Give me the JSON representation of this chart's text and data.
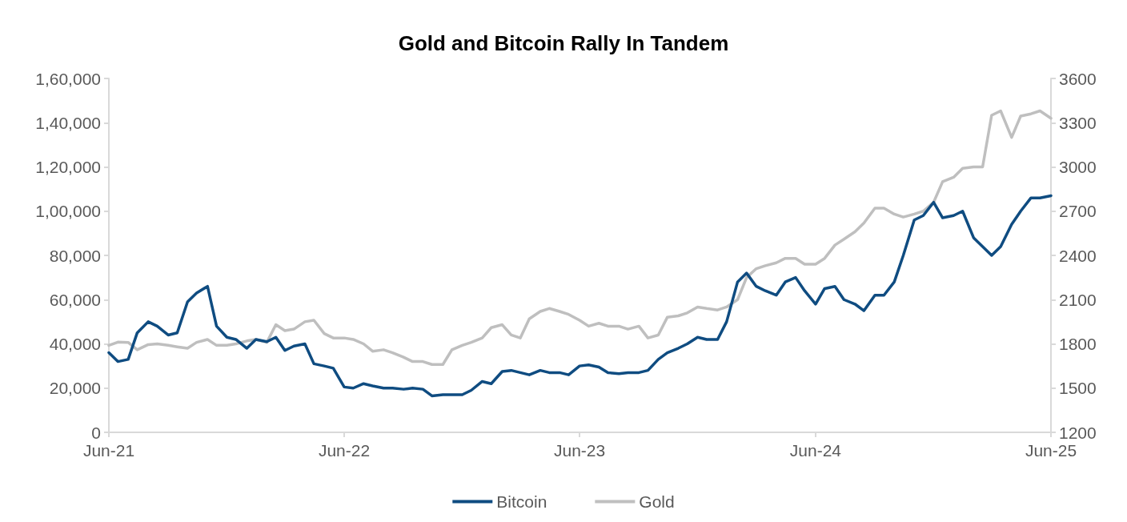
{
  "chart_data": {
    "type": "line",
    "title": "Gold and Bitcoin Rally In Tandem",
    "x": [
      "2021-06-01",
      "2021-06-15",
      "2021-07-01",
      "2021-07-15",
      "2021-08-01",
      "2021-08-15",
      "2021-09-01",
      "2021-09-15",
      "2021-10-01",
      "2021-10-15",
      "2021-11-01",
      "2021-11-15",
      "2021-12-01",
      "2021-12-15",
      "2022-01-01",
      "2022-01-15",
      "2022-02-01",
      "2022-02-15",
      "2022-03-01",
      "2022-03-15",
      "2022-04-01",
      "2022-04-15",
      "2022-05-01",
      "2022-05-15",
      "2022-06-01",
      "2022-06-15",
      "2022-07-01",
      "2022-07-15",
      "2022-08-01",
      "2022-08-15",
      "2022-09-01",
      "2022-09-15",
      "2022-10-01",
      "2022-10-15",
      "2022-11-01",
      "2022-11-15",
      "2022-12-01",
      "2022-12-15",
      "2023-01-01",
      "2023-01-15",
      "2023-02-01",
      "2023-02-15",
      "2023-03-01",
      "2023-03-15",
      "2023-04-01",
      "2023-04-15",
      "2023-05-01",
      "2023-05-15",
      "2023-06-01",
      "2023-06-15",
      "2023-07-01",
      "2023-07-15",
      "2023-08-01",
      "2023-08-15",
      "2023-09-01",
      "2023-09-15",
      "2023-10-01",
      "2023-10-15",
      "2023-11-01",
      "2023-11-15",
      "2023-12-01",
      "2023-12-15",
      "2024-01-01",
      "2024-01-15",
      "2024-02-01",
      "2024-02-15",
      "2024-03-01",
      "2024-03-15",
      "2024-04-01",
      "2024-04-15",
      "2024-05-01",
      "2024-05-15",
      "2024-06-01",
      "2024-06-15",
      "2024-07-01",
      "2024-07-15",
      "2024-08-01",
      "2024-08-15",
      "2024-09-01",
      "2024-09-15",
      "2024-10-01",
      "2024-10-15",
      "2024-11-01",
      "2024-11-15",
      "2024-12-01",
      "2024-12-15",
      "2025-01-01",
      "2025-01-15",
      "2025-02-01",
      "2025-02-15",
      "2025-03-01",
      "2025-03-15",
      "2025-04-01",
      "2025-04-15",
      "2025-05-01",
      "2025-05-15",
      "2025-06-01"
    ],
    "series": [
      {
        "name": "Bitcoin",
        "color": "#0f4c81",
        "values": [
          36000,
          32000,
          33000,
          45000,
          50000,
          48000,
          44000,
          45000,
          59000,
          63000,
          66000,
          48000,
          43000,
          42000,
          38000,
          42000,
          41000,
          43000,
          37000,
          39000,
          40000,
          31000,
          30000,
          29000,
          20500,
          20000,
          22000,
          21000,
          20000,
          20000,
          19500,
          20000,
          19500,
          16500,
          17000,
          17000,
          17000,
          19000,
          23000,
          22000,
          27500,
          28000,
          27000,
          26000,
          28000,
          27000,
          27000,
          26000,
          30000,
          30500,
          29500,
          27000,
          26500,
          27000,
          27000,
          28000,
          33000,
          36000,
          38000,
          40000,
          43000,
          42000,
          42000,
          50000,
          68000,
          72000,
          66000,
          64000,
          62000,
          68000,
          70000,
          64000,
          58000,
          65000,
          66000,
          60000,
          58000,
          55000,
          62000,
          62000,
          68000,
          80000,
          96000,
          98000,
          104000,
          97000,
          98000,
          100000,
          88000,
          84000,
          80000,
          84000,
          94000,
          100000,
          106000,
          106000,
          107000
        ]
      },
      {
        "name": "Gold",
        "color": "#bfbfbf",
        "axis": "y2",
        "values": [
          1790,
          1812,
          1810,
          1760,
          1795,
          1800,
          1790,
          1780,
          1770,
          1810,
          1830,
          1790,
          1790,
          1800,
          1820,
          1830,
          1810,
          1930,
          1890,
          1900,
          1950,
          1960,
          1870,
          1840,
          1840,
          1830,
          1800,
          1750,
          1760,
          1740,
          1710,
          1680,
          1680,
          1660,
          1660,
          1760,
          1790,
          1810,
          1840,
          1910,
          1930,
          1860,
          1840,
          1970,
          2020,
          2040,
          2020,
          2000,
          1960,
          1920,
          1940,
          1920,
          1920,
          1900,
          1920,
          1840,
          1860,
          1980,
          1990,
          2010,
          2050,
          2040,
          2030,
          2050,
          2100,
          2250,
          2310,
          2330,
          2350,
          2380,
          2380,
          2340,
          2340,
          2380,
          2470,
          2510,
          2560,
          2620,
          2720,
          2720,
          2680,
          2660,
          2680,
          2700,
          2760,
          2900,
          2930,
          2990,
          3000,
          3000,
          3350,
          3380,
          3200,
          3345,
          3360,
          3380,
          3330
        ]
      }
    ],
    "xlim": [
      "2021-06-01",
      "2025-06-01"
    ],
    "xticks": [
      {
        "value": "2021-06-01",
        "label": "Jun-21"
      },
      {
        "value": "2022-06-01",
        "label": "Jun-22"
      },
      {
        "value": "2023-06-01",
        "label": "Jun-23"
      },
      {
        "value": "2024-06-01",
        "label": "Jun-24"
      },
      {
        "value": "2025-06-01",
        "label": "Jun-25"
      }
    ],
    "ylim": [
      0,
      160000
    ],
    "yticks": [
      0,
      {
        "value": 20000,
        "label": "20,000"
      },
      {
        "value": 40000,
        "label": "40,000"
      },
      {
        "value": 60000,
        "label": "60,000"
      },
      {
        "value": 80000,
        "label": "80,000"
      },
      {
        "value": 100000,
        "label": "1,00,000"
      },
      {
        "value": 120000,
        "label": "1,20,000"
      },
      {
        "value": 140000,
        "label": "1,40,000"
      },
      {
        "value": 160000,
        "label": "1,60,000"
      }
    ],
    "y2lim": [
      1200,
      3600
    ],
    "y2ticks": [
      1200,
      1500,
      1800,
      2100,
      2400,
      2700,
      3000,
      3300,
      3600
    ],
    "grid": false,
    "legend": "bottom",
    "marker": "none",
    "line_style": "solid"
  }
}
